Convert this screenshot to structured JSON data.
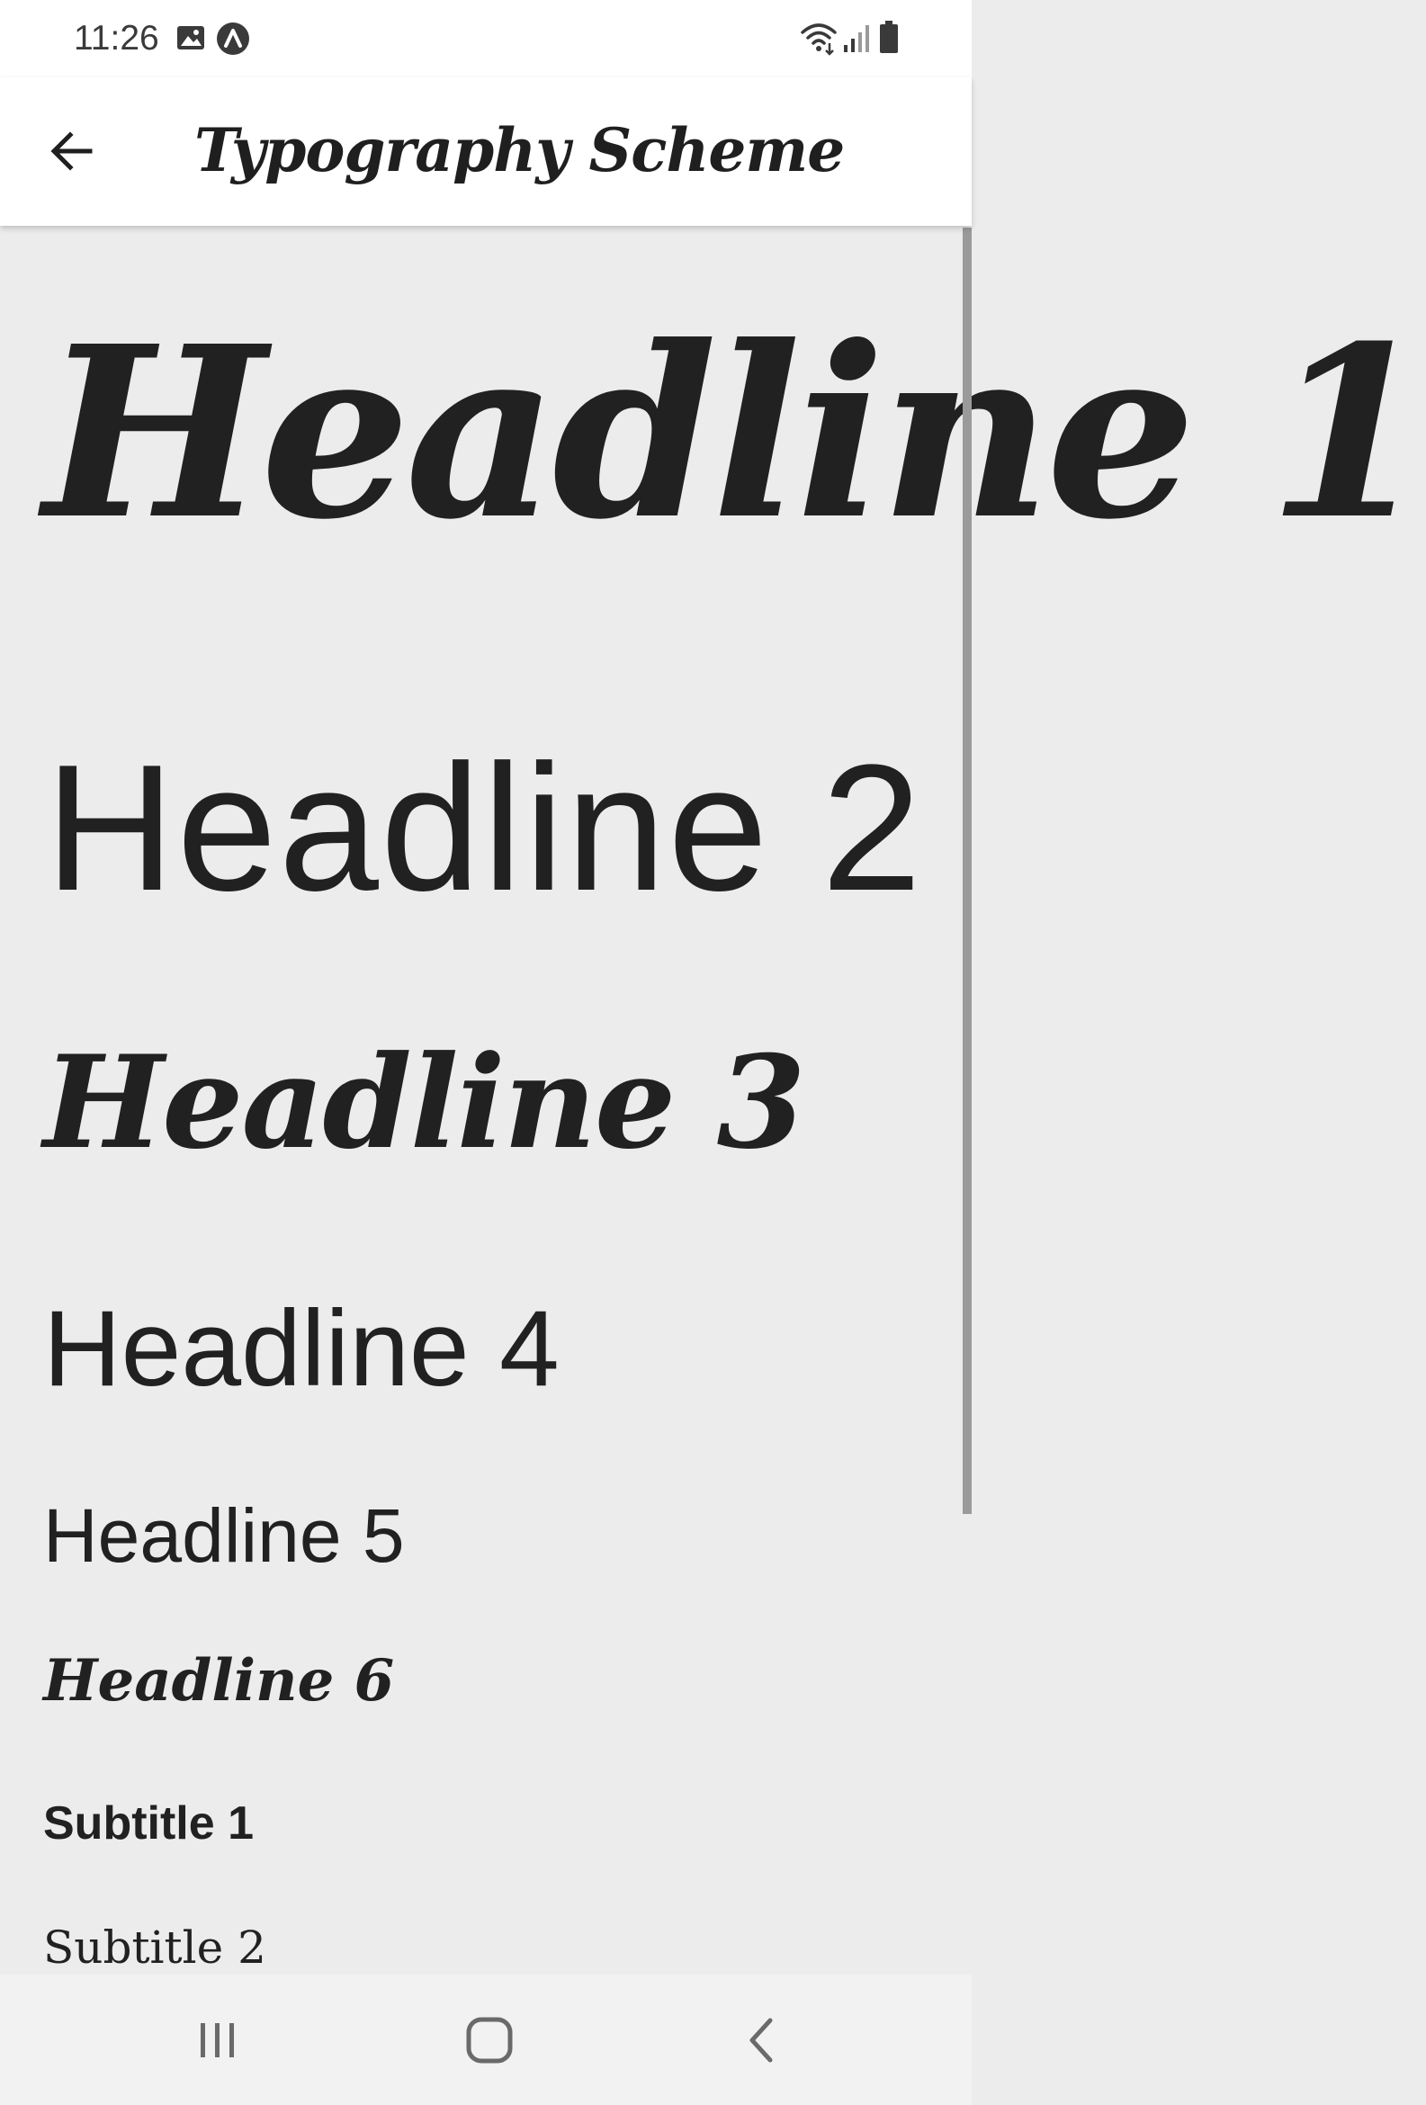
{
  "status_bar": {
    "time": "11:26",
    "icons": [
      "image-icon",
      "notification-a-icon",
      "wifi-icon",
      "signal-icon",
      "battery-icon"
    ]
  },
  "app_bar": {
    "title": "Typography Scheme",
    "back_icon": "arrow-left-icon"
  },
  "typography": {
    "headline1": "Headline 1",
    "headline2": "Headline 2",
    "headline3": "Headline 3",
    "headline4": "Headline 4",
    "headline5": "Headline 5",
    "headline6": "Headline 6",
    "subtitle1": "Subtitle 1",
    "subtitle2": "Subtitle 2"
  },
  "nav_bar": {
    "icons": [
      "recent-apps-icon",
      "home-icon",
      "back-icon"
    ]
  },
  "colors": {
    "background": "#ececec",
    "surface": "#ffffff",
    "text": "#212121",
    "nav_background": "#f2f2f2"
  }
}
